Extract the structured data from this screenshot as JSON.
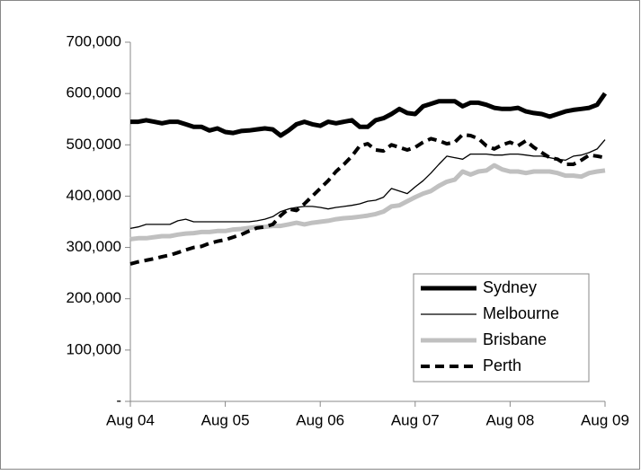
{
  "chart_data": {
    "type": "line",
    "categories": [
      "Aug 04",
      null,
      null,
      null,
      null,
      null,
      null,
      null,
      null,
      null,
      null,
      null,
      "Aug 05",
      null,
      null,
      null,
      null,
      null,
      null,
      null,
      null,
      null,
      null,
      null,
      "Aug 06",
      null,
      null,
      null,
      null,
      null,
      null,
      null,
      null,
      null,
      null,
      null,
      "Aug 07",
      null,
      null,
      null,
      null,
      null,
      null,
      null,
      null,
      null,
      null,
      null,
      "Aug 08",
      null,
      null,
      null,
      null,
      null,
      null,
      null,
      null,
      null,
      null,
      null,
      "Aug 09"
    ],
    "series": [
      {
        "name": "Sydney",
        "color": "#000000",
        "width": 5,
        "dash": false,
        "values": [
          545000,
          545000,
          548000,
          545000,
          542000,
          545000,
          545000,
          540000,
          535000,
          535000,
          528000,
          532000,
          525000,
          523000,
          527000,
          528000,
          530000,
          532000,
          530000,
          518000,
          528000,
          540000,
          545000,
          540000,
          537000,
          545000,
          542000,
          545000,
          548000,
          535000,
          535000,
          548000,
          552000,
          560000,
          570000,
          562000,
          560000,
          575000,
          580000,
          585000,
          585000,
          585000,
          575000,
          582000,
          582000,
          578000,
          572000,
          570000,
          570000,
          572000,
          565000,
          562000,
          560000,
          555000,
          560000,
          565000,
          568000,
          570000,
          572000,
          578000,
          600000
        ]
      },
      {
        "name": "Melbourne",
        "color": "#000000",
        "width": 1.3,
        "dash": false,
        "values": [
          337000,
          340000,
          345000,
          345000,
          345000,
          345000,
          352000,
          355000,
          350000,
          350000,
          350000,
          350000,
          350000,
          350000,
          350000,
          350000,
          352000,
          355000,
          360000,
          370000,
          375000,
          378000,
          380000,
          380000,
          378000,
          375000,
          378000,
          380000,
          382000,
          385000,
          390000,
          392000,
          398000,
          415000,
          410000,
          405000,
          418000,
          430000,
          445000,
          462000,
          478000,
          475000,
          472000,
          482000,
          482000,
          482000,
          480000,
          480000,
          482000,
          482000,
          480000,
          478000,
          478000,
          475000,
          472000,
          470000,
          478000,
          480000,
          485000,
          492000,
          510000
        ]
      },
      {
        "name": "Brisbane",
        "color": "#c0c0c0",
        "width": 5,
        "dash": false,
        "values": [
          316000,
          318000,
          318000,
          320000,
          322000,
          322000,
          325000,
          327000,
          328000,
          330000,
          330000,
          332000,
          332000,
          335000,
          336000,
          338000,
          340000,
          340000,
          342000,
          342000,
          345000,
          348000,
          345000,
          348000,
          350000,
          352000,
          355000,
          357000,
          358000,
          360000,
          362000,
          365000,
          370000,
          380000,
          382000,
          390000,
          398000,
          405000,
          410000,
          420000,
          428000,
          432000,
          448000,
          442000,
          448000,
          450000,
          460000,
          452000,
          448000,
          448000,
          445000,
          448000,
          448000,
          448000,
          445000,
          440000,
          440000,
          438000,
          445000,
          448000,
          450000
        ]
      },
      {
        "name": "Perth",
        "color": "#000000",
        "width": 4,
        "dash": true,
        "values": [
          268000,
          272000,
          275000,
          278000,
          282000,
          285000,
          290000,
          295000,
          300000,
          302000,
          308000,
          312000,
          315000,
          320000,
          325000,
          332000,
          338000,
          340000,
          345000,
          362000,
          375000,
          372000,
          385000,
          400000,
          415000,
          430000,
          448000,
          462000,
          478000,
          498000,
          502000,
          490000,
          488000,
          500000,
          495000,
          490000,
          495000,
          505000,
          512000,
          508000,
          502000,
          505000,
          520000,
          518000,
          512000,
          498000,
          492000,
          500000,
          505000,
          498000,
          508000,
          495000,
          485000,
          475000,
          472000,
          462000,
          462000,
          470000,
          480000,
          478000,
          475000
        ]
      }
    ],
    "ylim": [
      0,
      700000
    ],
    "yticks": [
      {
        "value": 0,
        "label": "-"
      },
      {
        "value": 100000,
        "label": "100,000"
      },
      {
        "value": 200000,
        "label": "200,000"
      },
      {
        "value": 300000,
        "label": "300,000"
      },
      {
        "value": 400000,
        "label": "400,000"
      },
      {
        "value": 500000,
        "label": "500,000"
      },
      {
        "value": 600000,
        "label": "600,000"
      },
      {
        "value": 700000,
        "label": "700,000"
      }
    ],
    "grid": false,
    "legend": "lower right"
  }
}
